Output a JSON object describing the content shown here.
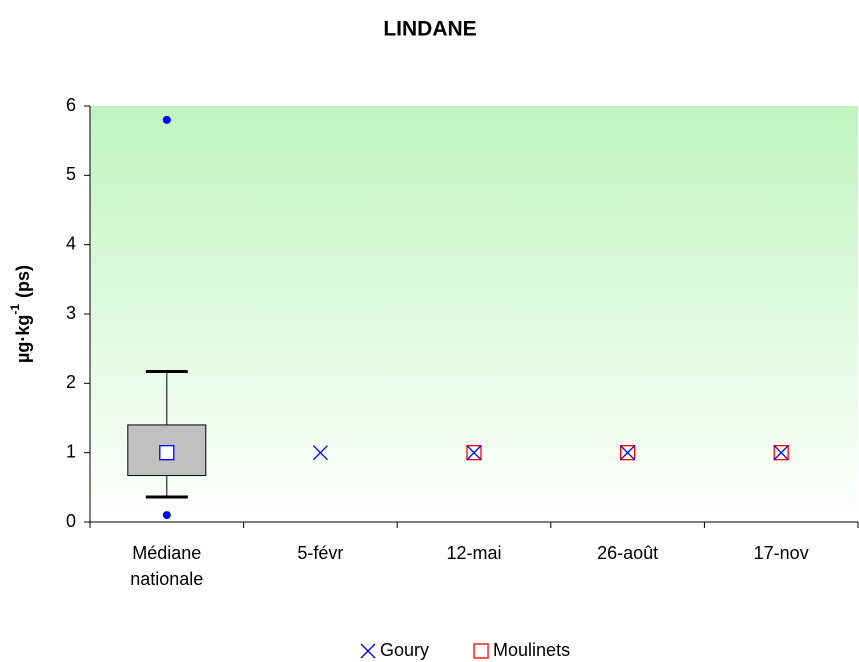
{
  "chart_data": {
    "type": "box-scatter",
    "title": "LINDANE",
    "y_label": {
      "base": "µg·kg",
      "sup": "-1",
      "unit": "(ps)"
    },
    "categories": [
      "Médiane nationale",
      "5-févr",
      "12-mai",
      "26-août",
      "17-nov"
    ],
    "box": {
      "category": 0,
      "q1": 0.67,
      "q3": 1.4,
      "median": 1,
      "whisker_low": 0.36,
      "whisker_high": 2.17,
      "outliers": [
        0.1,
        5.8
      ],
      "color": "#c0c0c0",
      "outlier_color": "#0000ff"
    },
    "series": [
      {
        "name": "Goury",
        "color": "#0000ff",
        "marker": "x",
        "values": [
          null,
          1,
          1,
          1,
          1
        ]
      },
      {
        "name": "Moulinets",
        "color": "#ff0000",
        "marker": "square",
        "values": [
          null,
          null,
          1,
          1,
          1
        ]
      }
    ],
    "ylim": [
      0,
      6
    ],
    "yticks": [
      0,
      1,
      2,
      3,
      4,
      5,
      6
    ],
    "grid": false
  }
}
